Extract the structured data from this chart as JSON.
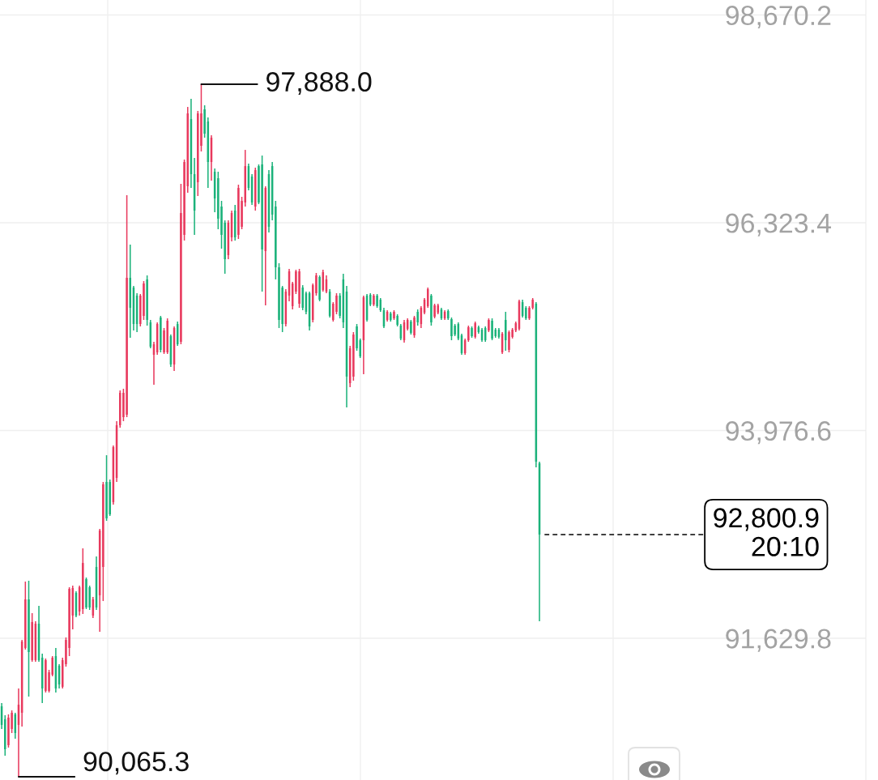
{
  "chart_data": {
    "type": "candlestick",
    "categories": [
      null,
      null,
      null,
      null,
      null,
      null,
      null,
      null,
      null,
      null,
      null,
      null,
      null,
      null,
      null,
      null,
      null,
      null,
      null,
      null,
      null,
      null,
      null,
      null,
      null,
      null,
      null,
      null,
      null,
      null,
      null,
      null,
      null,
      null,
      null,
      null,
      null,
      null,
      null,
      null,
      null,
      null,
      null,
      null,
      null,
      null,
      null,
      null,
      null,
      null,
      null,
      null,
      null,
      null,
      null,
      null,
      null,
      null,
      null,
      null,
      null,
      null,
      null,
      null,
      null,
      null,
      null,
      null,
      null,
      null,
      null,
      null,
      null,
      null,
      null,
      null,
      null,
      null,
      null,
      null,
      null,
      null,
      null,
      null,
      null,
      null,
      null,
      null,
      null,
      null,
      null,
      null,
      null,
      null,
      null,
      null,
      null,
      null,
      null,
      null,
      null,
      null,
      null,
      null,
      null,
      null,
      null,
      null,
      null,
      null,
      null,
      null,
      null,
      null,
      null,
      null,
      null,
      null,
      null,
      null,
      null,
      null,
      null,
      null,
      null,
      null,
      null,
      null,
      null,
      null,
      null,
      null,
      null,
      null,
      null,
      null,
      null,
      null,
      null,
      null,
      null,
      null,
      null,
      null,
      null,
      null,
      null,
      null,
      null,
      null,
      null,
      null,
      null,
      null,
      null,
      null,
      null,
      null,
      null,
      null,
      null,
      null,
      null,
      null,
      null,
      null,
      null,
      null,
      null,
      null,
      null,
      null,
      null,
      null,
      null,
      null,
      null,
      null,
      null,
      null,
      null,
      null,
      null,
      null,
      null,
      null,
      null,
      null,
      null,
      null,
      null,
      null,
      null,
      null,
      null,
      null,
      null,
      null,
      null,
      null,
      null,
      null,
      null,
      null,
      null,
      null,
      null,
      null,
      null,
      null,
      null,
      null,
      null,
      null,
      null,
      null,
      null,
      null,
      null,
      null,
      null,
      null,
      null,
      null,
      null,
      null,
      null,
      null,
      null,
      null,
      null,
      null,
      null,
      null,
      null,
      null,
      null,
      null,
      null,
      null,
      null,
      null,
      null,
      null,
      null,
      null,
      null,
      null,
      null,
      null,
      null,
      null,
      null,
      null,
      null,
      null
    ],
    "ohlc": [
      [
        90861,
        90898,
        90605,
        90651
      ],
      [
        90715,
        90760,
        90303,
        90376
      ],
      [
        90422,
        90770,
        90395,
        90733
      ],
      [
        90605,
        90815,
        90559,
        90788
      ],
      [
        90770,
        90788,
        90495,
        90559
      ],
      [
        90651,
        91062,
        90065.3,
        90879
      ],
      [
        90788,
        91611,
        90632,
        91593
      ],
      [
        91520,
        92270,
        91502,
        92069
      ],
      [
        92069,
        92279,
        90971,
        91474
      ],
      [
        91383,
        91913,
        91364,
        91813
      ],
      [
        91383,
        91822,
        91364,
        91794
      ],
      [
        91794,
        91996,
        91364,
        91383
      ],
      [
        91410,
        91456,
        90898,
        91062
      ],
      [
        91035,
        91401,
        91017,
        91383
      ],
      [
        91035,
        91273,
        91017,
        91245
      ],
      [
        91218,
        91428,
        91200,
        91410
      ],
      [
        91428,
        91520,
        91017,
        91062
      ],
      [
        91319,
        91337,
        91062,
        91108
      ],
      [
        91081,
        91410,
        91062,
        91383
      ],
      [
        91337,
        91639,
        91309,
        91611
      ],
      [
        91520,
        92206,
        91428,
        92188
      ],
      [
        91886,
        92224,
        91730,
        92197
      ],
      [
        92142,
        92160,
        91868,
        91886
      ],
      [
        91932,
        92224,
        91886,
        92206
      ],
      [
        91959,
        92645,
        91904,
        92480
      ],
      [
        92298,
        92316,
        91959,
        91977
      ],
      [
        92206,
        92224,
        91950,
        91977
      ],
      [
        91886,
        92096,
        91858,
        92069
      ],
      [
        92435,
        92554,
        91950,
        91977
      ],
      [
        92115,
        92865,
        91703,
        92846
      ],
      [
        92435,
        93395,
        92050,
        93368
      ],
      [
        93395,
        93697,
        92956,
        92984
      ],
      [
        93395,
        93423,
        93011,
        93029
      ],
      [
        93167,
        93807,
        93139,
        93789
      ],
      [
        93441,
        94082,
        93395,
        94036
      ],
      [
        94036,
        94429,
        94008,
        94402
      ],
      [
        94127,
        94448,
        94082,
        94402
      ],
      [
        94155,
        96634,
        94127,
        95701
      ],
      [
        95701,
        96076,
        95024,
        95362
      ],
      [
        95591,
        95609,
        95106,
        95179
      ],
      [
        95500,
        95527,
        95088,
        95179
      ],
      [
        95179,
        95518,
        95152,
        95500
      ],
      [
        95271,
        95664,
        95225,
        95637
      ],
      [
        95683,
        95728,
        95161,
        95225
      ],
      [
        95198,
        95225,
        94905,
        94923
      ],
      [
        94832,
        94978,
        94493,
        94951
      ],
      [
        94859,
        95198,
        94832,
        95179
      ],
      [
        95253,
        95271,
        94859,
        94887
      ],
      [
        94859,
        95134,
        94841,
        95106
      ],
      [
        94859,
        95243,
        94841,
        95216
      ],
      [
        95042,
        95060,
        94695,
        94722
      ],
      [
        94722,
        95152,
        94649,
        95134
      ],
      [
        95179,
        95207,
        94932,
        94951
      ],
      [
        94978,
        96762,
        94951,
        96433
      ],
      [
        96186,
        97037,
        96122,
        97009
      ],
      [
        96735,
        97631,
        96662,
        97558
      ],
      [
        97494,
        97723,
        96716,
        96872
      ],
      [
        96872,
        97055,
        96186,
        96460
      ],
      [
        96781,
        97586,
        96625,
        97558
      ],
      [
        97192,
        97888.0,
        97128,
        97558
      ],
      [
        97604,
        97650,
        97284,
        97329
      ],
      [
        97467,
        97512,
        96716,
        97009
      ],
      [
        97009,
        97311,
        96799,
        97284
      ],
      [
        96899,
        96936,
        96442,
        96597
      ],
      [
        96826,
        96899,
        96250,
        96369
      ],
      [
        96506,
        96570,
        96030,
        96186
      ],
      [
        96323,
        96350,
        95747,
        95911
      ],
      [
        95957,
        96350,
        95911,
        96323
      ],
      [
        96158,
        96460,
        96113,
        96433
      ],
      [
        96460,
        96524,
        96122,
        96158
      ],
      [
        96186,
        96753,
        96140,
        96716
      ],
      [
        96277,
        96616,
        96250,
        96570
      ],
      [
        96552,
        97146,
        96506,
        96963
      ],
      [
        96963,
        96991,
        96689,
        96716
      ],
      [
        96845,
        96872,
        96524,
        96552
      ],
      [
        96506,
        96945,
        96460,
        96918
      ],
      [
        96963,
        96982,
        96533,
        96552
      ],
      [
        96982,
        97082,
        95545,
        96021
      ],
      [
        96003,
        96735,
        95390,
        96716
      ],
      [
        96872,
        96918,
        96213,
        96277
      ],
      [
        96963,
        97009,
        96350,
        96415
      ],
      [
        96506,
        96570,
        95683,
        95820
      ],
      [
        95820,
        95866,
        95134,
        95225
      ],
      [
        95591,
        95609,
        95088,
        95179
      ],
      [
        95179,
        95573,
        95152,
        95545
      ],
      [
        95500,
        95802,
        95436,
        95774
      ],
      [
        95381,
        95655,
        95344,
        95637
      ],
      [
        95545,
        95792,
        95518,
        95774
      ],
      [
        95408,
        95802,
        95362,
        95774
      ],
      [
        95591,
        95618,
        95335,
        95362
      ],
      [
        95527,
        95545,
        95289,
        95317
      ],
      [
        95527,
        95545,
        95106,
        95152
      ],
      [
        95225,
        95637,
        95198,
        95618
      ],
      [
        95527,
        95756,
        95500,
        95728
      ],
      [
        95710,
        95728,
        95436,
        95454
      ],
      [
        95564,
        95792,
        95545,
        95765
      ],
      [
        95545,
        95728,
        95527,
        95683
      ],
      [
        95545,
        95573,
        95253,
        95271
      ],
      [
        95225,
        95426,
        95207,
        95408
      ],
      [
        95317,
        95527,
        95289,
        95500
      ],
      [
        95500,
        95527,
        95243,
        95271
      ],
      [
        95683,
        95747,
        95134,
        95198
      ],
      [
        95545,
        95609,
        94237,
        94585
      ],
      [
        94511,
        94932,
        94466,
        94905
      ],
      [
        94585,
        95088,
        94539,
        95060
      ],
      [
        95152,
        95179,
        94877,
        94905
      ],
      [
        94996,
        95015,
        94795,
        94813
      ],
      [
        94996,
        95500,
        94612,
        95481
      ],
      [
        95500,
        95518,
        95207,
        95225
      ],
      [
        95509,
        95527,
        95381,
        95399
      ],
      [
        95399,
        95518,
        95381,
        95500
      ],
      [
        95500,
        95518,
        95362,
        95381
      ],
      [
        95454,
        95472,
        95317,
        95335
      ],
      [
        95335,
        95362,
        95134,
        95152
      ],
      [
        95225,
        95335,
        95207,
        95317
      ],
      [
        95298,
        95317,
        95207,
        95225
      ],
      [
        95243,
        95335,
        95225,
        95317
      ],
      [
        95271,
        95289,
        95152,
        95170
      ],
      [
        95161,
        95179,
        94996,
        95015
      ],
      [
        94996,
        95225,
        94969,
        95198
      ],
      [
        95125,
        95243,
        95106,
        95225
      ],
      [
        95207,
        95225,
        95060,
        95079
      ],
      [
        95051,
        95271,
        95024,
        95253
      ],
      [
        95317,
        95344,
        95161,
        95198
      ],
      [
        95179,
        95381,
        95134,
        95362
      ],
      [
        95307,
        95472,
        95289,
        95454
      ],
      [
        95381,
        95591,
        95362,
        95573
      ],
      [
        95500,
        95518,
        95161,
        95198
      ],
      [
        95262,
        95408,
        95243,
        95390
      ],
      [
        95307,
        95408,
        95289,
        95390
      ],
      [
        95344,
        95362,
        95225,
        95243
      ],
      [
        95243,
        95335,
        95225,
        95317
      ],
      [
        95326,
        95344,
        95225,
        95243
      ],
      [
        95234,
        95253,
        94996,
        95042
      ],
      [
        95161,
        95179,
        95042,
        95060
      ],
      [
        95179,
        95198,
        94996,
        95015
      ],
      [
        95051,
        95070,
        94832,
        94850
      ],
      [
        94850,
        95015,
        94832,
        94996
      ],
      [
        94996,
        95161,
        94978,
        95143
      ],
      [
        95134,
        95152,
        95024,
        95042
      ],
      [
        95033,
        95207,
        95015,
        95189
      ],
      [
        95143,
        95161,
        95070,
        95088
      ],
      [
        95115,
        95134,
        94978,
        94996
      ],
      [
        95134,
        95152,
        94978,
        94996
      ],
      [
        95106,
        95243,
        95088,
        95225
      ],
      [
        95216,
        95243,
        94996,
        95015
      ],
      [
        95115,
        95134,
        95024,
        95042
      ],
      [
        95115,
        95134,
        95015,
        95033
      ],
      [
        94859,
        95088,
        94841,
        95070
      ],
      [
        95225,
        95317,
        94877,
        94996
      ],
      [
        94887,
        95106,
        94859,
        95088
      ],
      [
        95033,
        95134,
        95015,
        95115
      ],
      [
        95106,
        95207,
        95088,
        95189
      ],
      [
        95125,
        95454,
        95106,
        95436
      ],
      [
        95426,
        95454,
        95253,
        95271
      ],
      [
        95362,
        95381,
        95225,
        95243
      ],
      [
        95243,
        95381,
        95225,
        95362
      ],
      [
        95362,
        95472,
        95344,
        95454
      ],
      [
        95408,
        95426,
        93560,
        93624
      ],
      [
        93606,
        93624,
        91822,
        92800.9
      ],
      null,
      null,
      null,
      null,
      null,
      null,
      null,
      null,
      null,
      null,
      null,
      null,
      null,
      null,
      null,
      null,
      null,
      null,
      null,
      null,
      null,
      null,
      null,
      null,
      null,
      null,
      null,
      null,
      null,
      null,
      null,
      null,
      null,
      null,
      null,
      null,
      null,
      null,
      null,
      null,
      null,
      null,
      null,
      null,
      null,
      null,
      null,
      null,
      null,
      null,
      null,
      null,
      null,
      null,
      null,
      null,
      null,
      null,
      null,
      null,
      null,
      null,
      null,
      null,
      null,
      null,
      null,
      null,
      null,
      null,
      null,
      null,
      null,
      null,
      null,
      null,
      null,
      null,
      null,
      null,
      null,
      null,
      null,
      null,
      null,
      null,
      null,
      null,
      null,
      null,
      null,
      null,
      null,
      null,
      null,
      null
    ],
    "colors": [
      "#1bb27a",
      "#1bb27a",
      "#e8395d",
      "#e8395d",
      "#1bb27a",
      "#e8395d",
      "#e8395d",
      "#e8395d",
      "#1bb27a",
      "#e8395d",
      "#e8395d",
      "#1bb27a",
      "#1bb27a",
      "#e8395d",
      "#e8395d",
      "#e8395d",
      "#1bb27a",
      "#1bb27a",
      "#e8395d",
      "#e8395d",
      "#e8395d",
      "#e8395d",
      "#1bb27a",
      "#e8395d",
      "#e8395d",
      "#1bb27a",
      "#1bb27a",
      "#e8395d",
      "#1bb27a",
      "#e8395d",
      "#e8395d",
      "#1bb27a",
      "#1bb27a",
      "#e8395d",
      "#e8395d",
      "#e8395d",
      "#e8395d",
      "#e8395d",
      "#1bb27a",
      "#1bb27a",
      "#1bb27a",
      "#e8395d",
      "#e8395d",
      "#1bb27a",
      "#1bb27a",
      "#e8395d",
      "#e8395d",
      "#1bb27a",
      "#e8395d",
      "#e8395d",
      "#1bb27a",
      "#e8395d",
      "#1bb27a",
      "#e8395d",
      "#e8395d",
      "#e8395d",
      "#1bb27a",
      "#1bb27a",
      "#e8395d",
      "#e8395d",
      "#1bb27a",
      "#1bb27a",
      "#e8395d",
      "#1bb27a",
      "#1bb27a",
      "#1bb27a",
      "#1bb27a",
      "#e8395d",
      "#e8395d",
      "#1bb27a",
      "#e8395d",
      "#e8395d",
      "#e8395d",
      "#1bb27a",
      "#1bb27a",
      "#e8395d",
      "#1bb27a",
      "#1bb27a",
      "#e8395d",
      "#1bb27a",
      "#1bb27a",
      "#1bb27a",
      "#1bb27a",
      "#1bb27a",
      "#e8395d",
      "#e8395d",
      "#e8395d",
      "#e8395d",
      "#e8395d",
      "#1bb27a",
      "#1bb27a",
      "#1bb27a",
      "#e8395d",
      "#e8395d",
      "#1bb27a",
      "#e8395d",
      "#e8395d",
      "#1bb27a",
      "#e8395d",
      "#e8395d",
      "#1bb27a",
      "#1bb27a",
      "#1bb27a",
      "#e8395d",
      "#e8395d",
      "#1bb27a",
      "#1bb27a",
      "#e8395d",
      "#1bb27a",
      "#1bb27a",
      "#e8395d",
      "#1bb27a",
      "#1bb27a",
      "#1bb27a",
      "#e8395d",
      "#1bb27a",
      "#e8395d",
      "#1bb27a",
      "#1bb27a",
      "#e8395d",
      "#e8395d",
      "#1bb27a",
      "#e8395d",
      "#1bb27a",
      "#e8395d",
      "#e8395d",
      "#e8395d",
      "#1bb27a",
      "#e8395d",
      "#e8395d",
      "#1bb27a",
      "#e8395d",
      "#1bb27a",
      "#1bb27a",
      "#1bb27a",
      "#1bb27a",
      "#1bb27a",
      "#e8395d",
      "#e8395d",
      "#1bb27a",
      "#e8395d",
      "#1bb27a",
      "#1bb27a",
      "#1bb27a",
      "#e8395d",
      "#1bb27a",
      "#1bb27a",
      "#1bb27a",
      "#e8395d",
      "#1bb27a",
      "#e8395d",
      "#e8395d",
      "#e8395d",
      "#e8395d",
      "#1bb27a",
      "#1bb27a",
      "#e8395d",
      "#e8395d",
      "#1bb27a",
      "#1bb27a",
      null,
      null,
      null,
      null,
      null,
      null,
      null,
      null,
      null,
      null,
      null,
      null,
      null,
      null,
      null,
      null,
      null,
      null,
      null,
      null,
      null,
      null,
      null,
      null,
      null,
      null,
      null,
      null,
      null,
      null,
      null,
      null,
      null,
      null,
      null,
      null,
      null,
      null,
      null,
      null,
      null,
      null,
      null,
      null,
      null,
      null,
      null,
      null,
      null,
      null,
      null,
      null,
      null,
      null,
      null,
      null,
      null,
      null,
      null,
      null,
      null,
      null,
      null,
      null,
      null,
      null,
      null,
      null,
      null,
      null,
      null,
      null,
      null,
      null,
      null,
      null,
      null,
      null,
      null,
      null,
      null,
      null,
      null,
      null,
      null,
      null,
      null,
      null,
      null,
      null,
      null,
      null,
      null,
      null,
      null,
      null
    ],
    "ylim": [
      90028.5,
      98839.0
    ],
    "yticks": [
      {
        "value": 91629.8,
        "label": "91,629.8"
      },
      {
        "value": 93976.6,
        "label": "93,976.6"
      },
      {
        "value": 96323.4,
        "label": "96,323.4"
      },
      {
        "value": 98670.2,
        "label": "98,670.2"
      }
    ],
    "tick_labels": "y",
    "grid": true,
    "annotations": [
      "97,888.0",
      "90,065.3"
    ],
    "ref_lines": [
      {
        "axis": "y",
        "value": 92800.9,
        "label": "92,800.9\n20:10",
        "color": "#000000",
        "line_style": "dashed"
      }
    ]
  }
}
